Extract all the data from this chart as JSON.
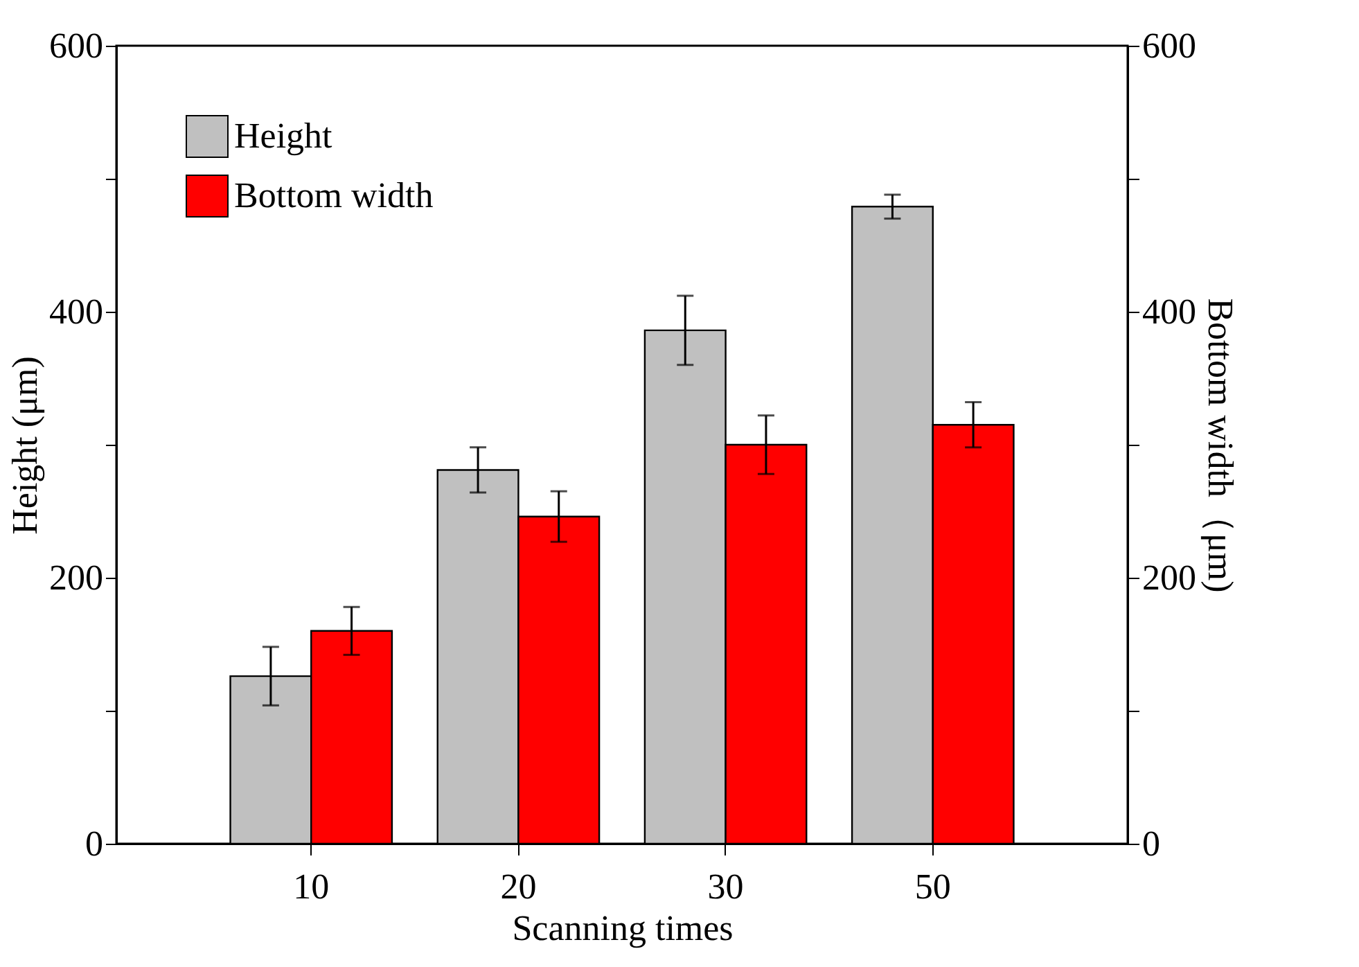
{
  "chart_data": {
    "type": "bar",
    "xlabel": "Scanning times",
    "ylabel": "Height (μm)",
    "y2label": "Bottom width（μm)",
    "categories": [
      "10",
      "20",
      "30",
      "50"
    ],
    "series": [
      {
        "name": "Height",
        "color": "#c0c0c0",
        "values": [
          126,
          281,
          386,
          479
        ],
        "errors": [
          22,
          17,
          26,
          9
        ]
      },
      {
        "name": "Bottom width",
        "color": "#ff0000",
        "axis": "y2",
        "values": [
          160,
          246,
          300,
          315
        ],
        "errors": [
          18,
          19,
          22,
          17
        ]
      }
    ],
    "ylim": [
      0,
      600
    ],
    "yticks": [
      0,
      {
        "value": 100,
        "label": null
      },
      200,
      {
        "value": 300,
        "label": null
      },
      400,
      {
        "value": 500,
        "label": null
      },
      600
    ],
    "y2lim": [
      0,
      600
    ],
    "y2ticks": [
      0,
      {
        "value": 100,
        "label": null
      },
      200,
      {
        "value": 300,
        "label": null
      },
      400,
      {
        "value": 500,
        "label": null
      },
      600
    ],
    "legend": "top left",
    "grid": false
  }
}
